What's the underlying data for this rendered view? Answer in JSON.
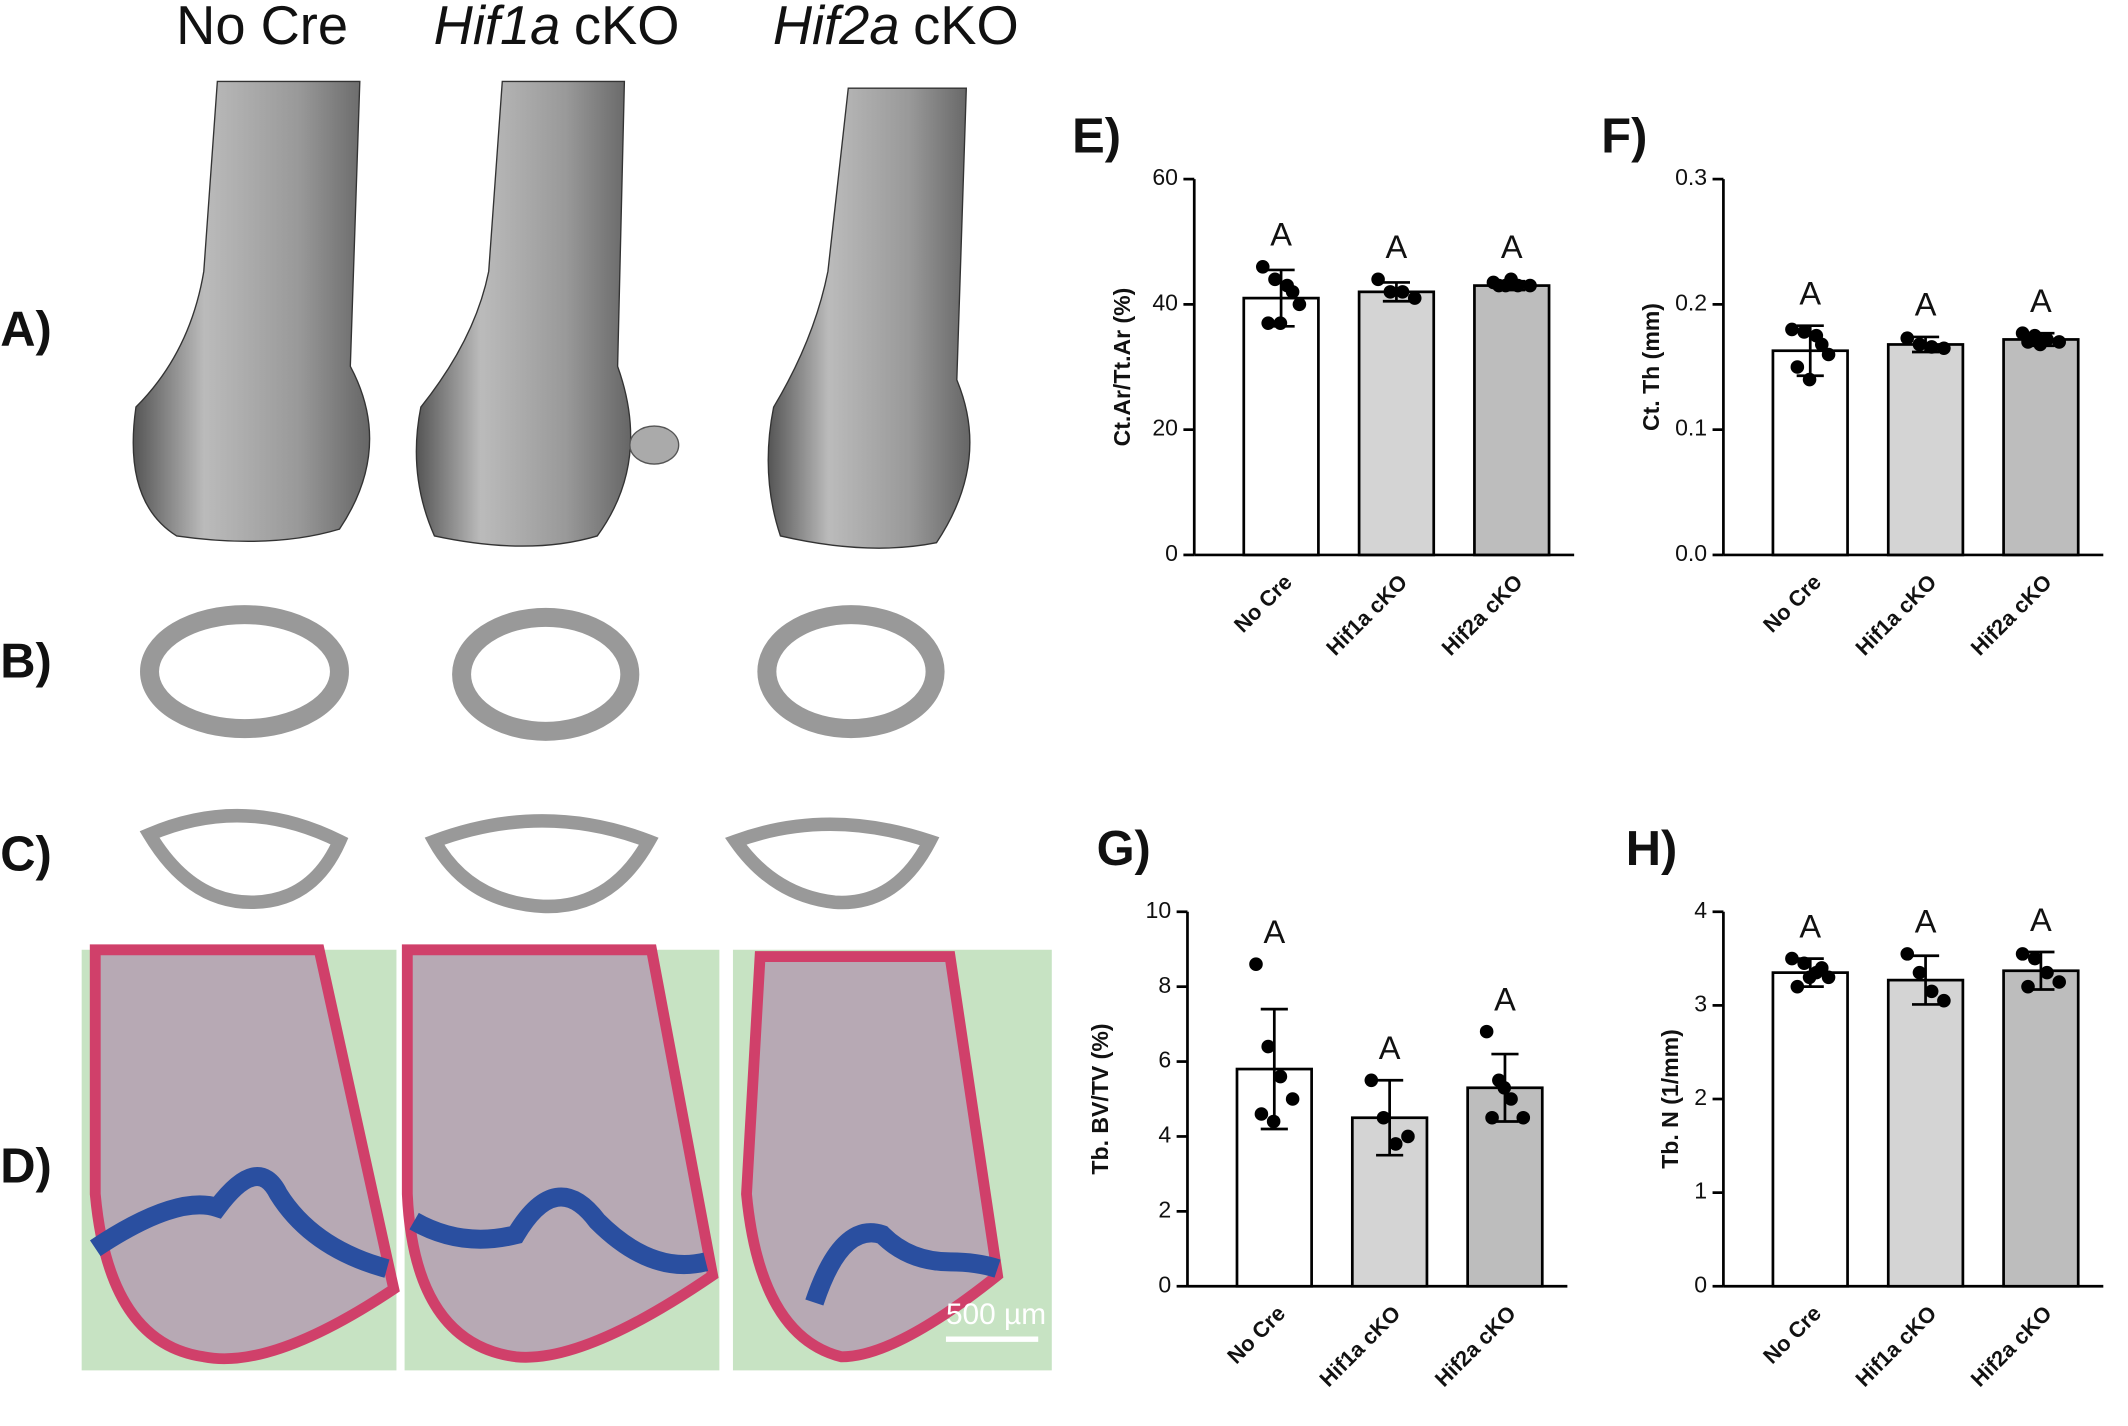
{
  "figure": {
    "column_headers": [
      {
        "plain": "No Cre"
      },
      {
        "italic": "Hif1a",
        "plain": "cKO"
      },
      {
        "italic": "Hif2a",
        "plain": "cKO"
      }
    ],
    "row_labels": [
      "A)",
      "B)",
      "C)",
      "D)"
    ],
    "scale_bar": "500 µm"
  },
  "chart_data": [
    {
      "type": "bar",
      "title": "E)",
      "y_label": "Ct.Ar/Tt.Ar (%)",
      "categories": [
        "No Cre",
        "Hif1a cKO",
        "Hif2a cKO"
      ],
      "values": [
        41,
        42,
        43
      ],
      "errors": [
        4.5,
        1.5,
        0.7
      ],
      "points": [
        [
          46,
          44,
          43,
          40,
          37,
          37,
          42
        ],
        [
          44,
          42,
          42,
          41
        ],
        [
          43.5,
          43,
          43,
          43,
          43,
          44
        ]
      ],
      "annotations": [
        "A",
        "A",
        "A"
      ],
      "colors": [
        "#ffffff",
        "#d4d4d4",
        "#bdbdbd"
      ],
      "ylim": [
        0,
        60
      ],
      "yticks": [
        0,
        20,
        40,
        60
      ]
    },
    {
      "type": "bar",
      "title": "F)",
      "y_label": "Ct. Th (mm)",
      "categories": [
        "No Cre",
        "Hif1a cKO",
        "Hif2a cKO"
      ],
      "values": [
        0.163,
        0.168,
        0.172
      ],
      "errors": [
        0.02,
        0.006,
        0.005
      ],
      "points": [
        [
          0.18,
          0.178,
          0.175,
          0.16,
          0.15,
          0.14,
          0.168
        ],
        [
          0.173,
          0.168,
          0.166,
          0.165
        ],
        [
          0.177,
          0.175,
          0.172,
          0.17,
          0.17,
          0.168
        ]
      ],
      "annotations": [
        "A",
        "A",
        "A"
      ],
      "colors": [
        "#ffffff",
        "#d4d4d4",
        "#bdbdbd"
      ],
      "ylim": [
        0,
        0.3
      ],
      "yticks": [
        {
          "value": 0,
          "label": "0.0"
        },
        0.1,
        0.2,
        0.3
      ]
    },
    {
      "type": "bar",
      "title": "G)",
      "y_label": "Tb. BV/TV (%)",
      "categories": [
        "No Cre",
        "Hif1a cKO",
        "Hif2a cKO"
      ],
      "values": [
        5.8,
        4.5,
        5.3
      ],
      "errors": [
        1.6,
        1.0,
        0.9
      ],
      "points": [
        [
          8.6,
          6.4,
          5.6,
          5.0,
          4.6,
          4.4
        ],
        [
          5.5,
          4.5,
          3.8,
          4.0
        ],
        [
          6.8,
          5.5,
          5.0,
          4.5,
          4.5,
          5.3
        ]
      ],
      "annotations": [
        "A",
        "A",
        "A"
      ],
      "colors": [
        "#ffffff",
        "#d4d4d4",
        "#bdbdbd"
      ],
      "ylim": [
        0,
        10
      ],
      "yticks": [
        0,
        2,
        4,
        6,
        8,
        10
      ]
    },
    {
      "type": "bar",
      "title": "H)",
      "y_label": "Tb. N (1/mm)",
      "categories": [
        "No Cre",
        "Hif1a cKO",
        "Hif2a cKO"
      ],
      "values": [
        3.35,
        3.27,
        3.37
      ],
      "errors": [
        0.15,
        0.26,
        0.2
      ],
      "points": [
        [
          3.5,
          3.45,
          3.35,
          3.3,
          3.2,
          3.3,
          3.4
        ],
        [
          3.55,
          3.35,
          3.15,
          3.05
        ],
        [
          3.55,
          3.5,
          3.35,
          3.25,
          3.2
        ]
      ],
      "annotations": [
        "A",
        "A",
        "A"
      ],
      "colors": [
        "#ffffff",
        "#d4d4d4",
        "#bdbdbd"
      ],
      "ylim": [
        0,
        4
      ],
      "yticks": [
        0,
        1,
        2,
        3,
        4
      ]
    }
  ]
}
